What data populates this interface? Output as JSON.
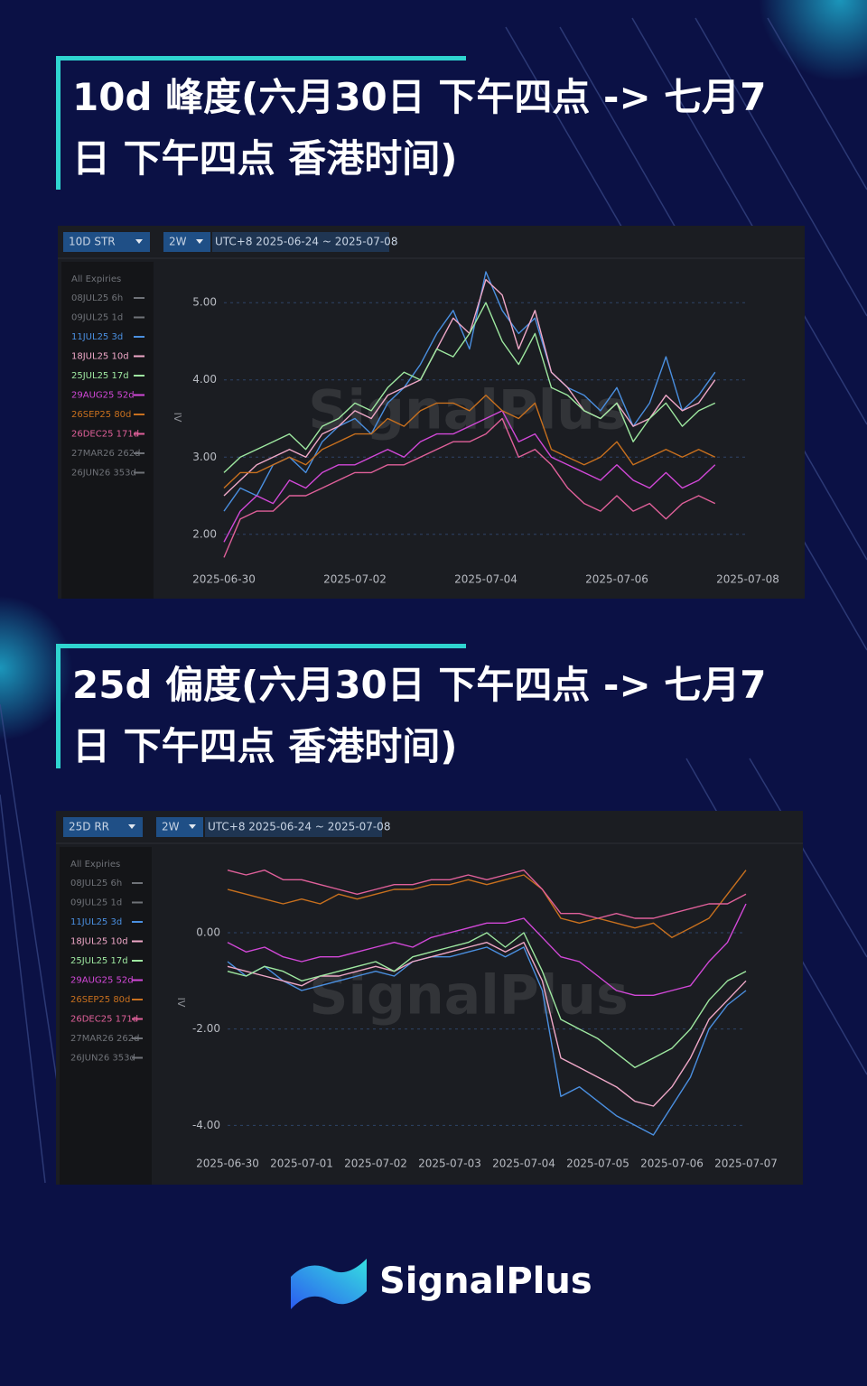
{
  "brand": "SignalPlus",
  "chart_data": [
    {
      "type": "line",
      "title": "10d 峰度(六月30日 下午四点 -> 七月7日 下午四点 香港时间)",
      "metric": "10D STR",
      "period": "2W",
      "range": "UTC+8 2025-06-24 ~ 2025-07-08",
      "legend_title": "All Expiries",
      "ylabel": "IV",
      "ylim": [
        1.6,
        5.4
      ],
      "yticks": [
        {
          "value": 2,
          "label": "2.00"
        },
        {
          "value": 3,
          "label": "3.00"
        },
        {
          "value": 4,
          "label": "4.00"
        },
        {
          "value": 5,
          "label": "5.00"
        }
      ],
      "grid": true,
      "categories": [
        "2025-06-30",
        null,
        null,
        null,
        null,
        null,
        null,
        null,
        "2025-07-02",
        null,
        null,
        null,
        null,
        null,
        null,
        null,
        "2025-07-04",
        null,
        null,
        null,
        null,
        null,
        null,
        null,
        "2025-07-06",
        null,
        null,
        null,
        null,
        null,
        null,
        null,
        "2025-07-08"
      ],
      "series": [
        {
          "name": "08JUL25 6h",
          "color": "#6f7278",
          "hidden": true
        },
        {
          "name": "09JUL25 1d",
          "color": "#6f7278",
          "hidden": true
        },
        {
          "name": "11JUL25 3d",
          "color": "#4a8fe0",
          "values": [
            2.3,
            2.6,
            2.5,
            2.9,
            3.0,
            2.8,
            3.2,
            3.4,
            3.5,
            3.3,
            3.7,
            3.9,
            4.2,
            4.6,
            4.9,
            4.4,
            5.4,
            4.9,
            4.6,
            4.8,
            4.1,
            3.9,
            3.8,
            3.6,
            3.9,
            3.4,
            3.7,
            4.3,
            3.6,
            3.8,
            4.1,
            null,
            null
          ]
        },
        {
          "name": "18JUL25 10d",
          "color": "#f0a8c8",
          "values": [
            2.5,
            2.7,
            2.9,
            3.0,
            3.1,
            3.0,
            3.3,
            3.4,
            3.6,
            3.5,
            3.8,
            3.9,
            4.0,
            4.4,
            4.8,
            4.6,
            5.3,
            5.1,
            4.4,
            4.9,
            4.1,
            3.9,
            3.6,
            3.5,
            3.7,
            3.4,
            3.5,
            3.8,
            3.6,
            3.7,
            4.0,
            null,
            null
          ]
        },
        {
          "name": "25JUL25 17d",
          "color": "#9ee8a0",
          "values": [
            2.8,
            3.0,
            3.1,
            3.2,
            3.3,
            3.1,
            3.4,
            3.5,
            3.7,
            3.6,
            3.9,
            4.1,
            4.0,
            4.4,
            4.3,
            4.6,
            5.0,
            4.5,
            4.2,
            4.6,
            3.9,
            3.8,
            3.6,
            3.5,
            3.7,
            3.2,
            3.5,
            3.7,
            3.4,
            3.6,
            3.7,
            null,
            null
          ]
        },
        {
          "name": "29AUG25 52d",
          "color": "#d248d8",
          "values": [
            1.9,
            2.3,
            2.5,
            2.4,
            2.7,
            2.6,
            2.8,
            2.9,
            2.9,
            3.0,
            3.1,
            3.0,
            3.2,
            3.3,
            3.3,
            3.4,
            3.5,
            3.6,
            3.2,
            3.3,
            3.0,
            2.9,
            2.8,
            2.7,
            2.9,
            2.7,
            2.6,
            2.8,
            2.6,
            2.7,
            2.9,
            null,
            null
          ]
        },
        {
          "name": "26SEP25 80d",
          "color": "#c8701e",
          "values": [
            2.6,
            2.8,
            2.8,
            2.9,
            3.0,
            2.9,
            3.1,
            3.2,
            3.3,
            3.3,
            3.5,
            3.4,
            3.6,
            3.7,
            3.7,
            3.6,
            3.8,
            3.6,
            3.5,
            3.7,
            3.1,
            3.0,
            2.9,
            3.0,
            3.2,
            2.9,
            3.0,
            3.1,
            3.0,
            3.1,
            3.0,
            null,
            null
          ]
        },
        {
          "name": "26DEC25 171d",
          "color": "#e0609a",
          "values": [
            1.7,
            2.2,
            2.3,
            2.3,
            2.5,
            2.5,
            2.6,
            2.7,
            2.8,
            2.8,
            2.9,
            2.9,
            3.0,
            3.1,
            3.2,
            3.2,
            3.3,
            3.5,
            3.0,
            3.1,
            2.9,
            2.6,
            2.4,
            2.3,
            2.5,
            2.3,
            2.4,
            2.2,
            2.4,
            2.5,
            2.4,
            null,
            null
          ]
        },
        {
          "name": "27MAR26 262d",
          "color": "#6f7278",
          "hidden": true
        },
        {
          "name": "26JUN26 353d",
          "color": "#6f7278",
          "hidden": true
        }
      ]
    },
    {
      "type": "line",
      "title": "25d 偏度(六月30日 下午四点 -> 七月7日 下午四点 香港时间)",
      "metric": "25D RR",
      "period": "2W",
      "range": "UTC+8 2025-06-24 ~ 2025-07-08",
      "legend_title": "All Expiries",
      "ylabel": "IV",
      "ylim": [
        -4.5,
        1.5
      ],
      "yticks": [
        {
          "value": -4,
          "label": "-4.00"
        },
        {
          "value": -2,
          "label": "-2.00"
        },
        {
          "value": 0,
          "label": "0.00"
        }
      ],
      "grid": true,
      "categories": [
        "2025-06-30",
        null,
        null,
        null,
        "2025-07-01",
        null,
        null,
        null,
        "2025-07-02",
        null,
        null,
        null,
        "2025-07-03",
        null,
        null,
        null,
        "2025-07-04",
        null,
        null,
        null,
        "2025-07-05",
        null,
        null,
        null,
        "2025-07-06",
        null,
        null,
        null,
        "2025-07-07"
      ],
      "series": [
        {
          "name": "08JUL25 6h",
          "color": "#6f7278",
          "hidden": true
        },
        {
          "name": "09JUL25 1d",
          "color": "#6f7278",
          "hidden": true
        },
        {
          "name": "11JUL25 3d",
          "color": "#4a8fe0",
          "values": [
            -0.6,
            -0.9,
            -0.7,
            -1.0,
            -1.2,
            -1.1,
            -1.0,
            -0.9,
            -0.8,
            -0.9,
            -0.6,
            -0.5,
            -0.5,
            -0.4,
            -0.3,
            -0.5,
            -0.3,
            -1.2,
            -3.4,
            -3.2,
            -3.5,
            -3.8,
            -4.0,
            -4.2,
            -3.6,
            -3.0,
            -2.0,
            -1.5,
            -1.2
          ]
        },
        {
          "name": "18JUL25 10d",
          "color": "#f0a8c8",
          "values": [
            -0.7,
            -0.8,
            -0.9,
            -1.0,
            -1.1,
            -0.9,
            -0.9,
            -0.8,
            -0.7,
            -0.8,
            -0.6,
            -0.5,
            -0.4,
            -0.3,
            -0.2,
            -0.4,
            -0.2,
            -1.0,
            -2.6,
            -2.8,
            -3.0,
            -3.2,
            -3.5,
            -3.6,
            -3.2,
            -2.6,
            -1.8,
            -1.4,
            -1.0
          ]
        },
        {
          "name": "25JUL25 17d",
          "color": "#9ee8a0",
          "values": [
            -0.8,
            -0.9,
            -0.7,
            -0.8,
            -1.0,
            -0.9,
            -0.8,
            -0.7,
            -0.6,
            -0.8,
            -0.5,
            -0.4,
            -0.3,
            -0.2,
            0.0,
            -0.3,
            0.0,
            -0.8,
            -1.8,
            -2.0,
            -2.2,
            -2.5,
            -2.8,
            -2.6,
            -2.4,
            -2.0,
            -1.4,
            -1.0,
            -0.8
          ]
        },
        {
          "name": "29AUG25 52d",
          "color": "#d248d8",
          "values": [
            -0.2,
            -0.4,
            -0.3,
            -0.5,
            -0.6,
            -0.5,
            -0.5,
            -0.4,
            -0.3,
            -0.2,
            -0.3,
            -0.1,
            0.0,
            0.1,
            0.2,
            0.2,
            0.3,
            -0.1,
            -0.5,
            -0.6,
            -0.9,
            -1.2,
            -1.3,
            -1.3,
            -1.2,
            -1.1,
            -0.6,
            -0.2,
            0.6
          ]
        },
        {
          "name": "26SEP25 80d",
          "color": "#c8701e",
          "values": [
            0.9,
            0.8,
            0.7,
            0.6,
            0.7,
            0.6,
            0.8,
            0.7,
            0.8,
            0.9,
            0.9,
            1.0,
            1.0,
            1.1,
            1.0,
            1.1,
            1.2,
            0.9,
            0.3,
            0.2,
            0.3,
            0.2,
            0.1,
            0.2,
            -0.1,
            0.1,
            0.3,
            0.8,
            1.3
          ]
        },
        {
          "name": "26DEC25 171d",
          "color": "#e0609a",
          "values": [
            1.3,
            1.2,
            1.3,
            1.1,
            1.1,
            1.0,
            0.9,
            0.8,
            0.9,
            1.0,
            1.0,
            1.1,
            1.1,
            1.2,
            1.1,
            1.2,
            1.3,
            0.9,
            0.4,
            0.4,
            0.3,
            0.4,
            0.3,
            0.3,
            0.4,
            0.5,
            0.6,
            0.6,
            0.8
          ]
        },
        {
          "name": "27MAR26 262d",
          "color": "#6f7278",
          "hidden": true
        },
        {
          "name": "26JUN26 353d",
          "color": "#6f7278",
          "hidden": true
        }
      ]
    }
  ]
}
